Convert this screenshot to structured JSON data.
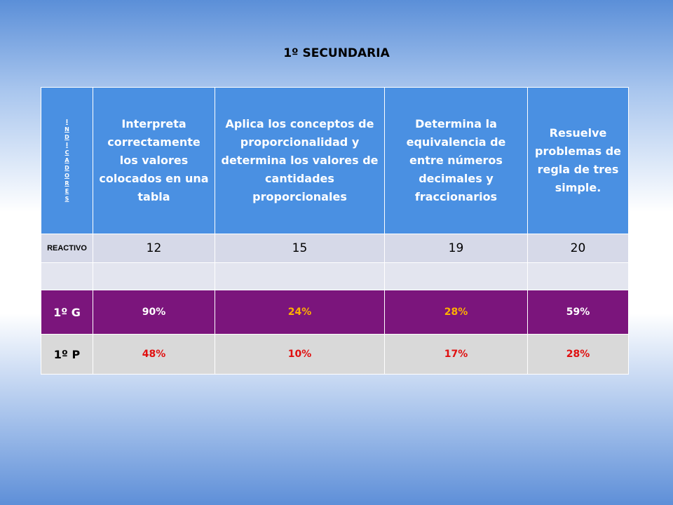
{
  "title": "1º SECUNDARIA",
  "header": {
    "indicator_letters": [
      "I",
      "N",
      "D",
      "I",
      "C",
      "A",
      "D",
      "O",
      "R",
      "E",
      "S"
    ],
    "columns": [
      "Interpreta correctamente los valores colocados en una tabla",
      "Aplica los conceptos de proporcionalidad y determina los valores de cantidades proporcionales",
      "Determina la equivalencia de entre números decimales y fraccionarios",
      "Resuelve problemas de regla de tres simple."
    ]
  },
  "reactivo": {
    "label": "REACTIVO",
    "values": [
      "12",
      "15",
      "19",
      "20"
    ]
  },
  "rows": [
    {
      "label": "1º G",
      "values": [
        "90%",
        "24%",
        "28%",
        "59%"
      ]
    },
    {
      "label": "1º P",
      "values": [
        "48%",
        "10%",
        "17%",
        "28%"
      ]
    }
  ],
  "colors": {
    "header_bg": "#4a90e2",
    "row_g_bg": "#7b157c",
    "row_p_bg": "#d9d9d9",
    "orange": "#ffb000",
    "red": "#e01010"
  }
}
